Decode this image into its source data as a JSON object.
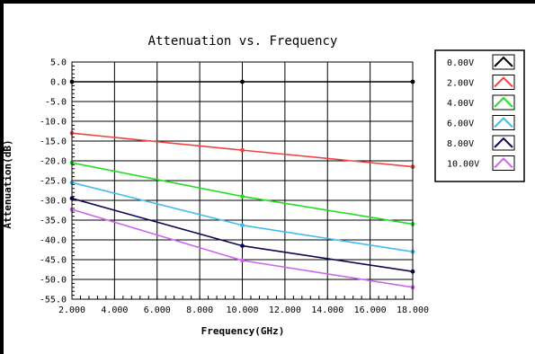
{
  "chart_data": {
    "type": "line",
    "title": "Attenuation vs. Frequency",
    "xlabel": "Frequency(GHz)",
    "ylabel": "Attenuation(dB)",
    "xlim": [
      2,
      18
    ],
    "ylim": [
      -55,
      5
    ],
    "grid": true,
    "legend_position": "top-right",
    "x_ticks": [
      "2.000",
      "4.000",
      "6.000",
      "8.000",
      "10.000",
      "12.000",
      "14.000",
      "16.000",
      "18.000"
    ],
    "y_ticks": [
      "5.0",
      "0.0",
      "-5.0",
      "-10.0",
      "-15.0",
      "-20.0",
      "-25.0",
      "-30.0",
      "-35.0",
      "-40.0",
      "-45.0",
      "-50.0",
      "-55.0"
    ],
    "series": [
      {
        "name": "0.00V",
        "color": "#000000",
        "points": [
          [
            2,
            0
          ],
          [
            10,
            0
          ],
          [
            18,
            0
          ]
        ]
      },
      {
        "name": "2.00V",
        "color": "#ee4444",
        "points": [
          [
            2,
            -13.0
          ],
          [
            10,
            -17.3
          ],
          [
            18,
            -21.5
          ]
        ]
      },
      {
        "name": "4.00V",
        "color": "#22dd22",
        "points": [
          [
            2,
            -20.5
          ],
          [
            10,
            -29.0
          ],
          [
            18,
            -36.0
          ]
        ]
      },
      {
        "name": "6.00V",
        "color": "#44bbee",
        "points": [
          [
            2,
            -25.5
          ],
          [
            10,
            -36.3
          ],
          [
            18,
            -43.0
          ]
        ]
      },
      {
        "name": "8.00V",
        "color": "#0a0a55",
        "points": [
          [
            2,
            -29.5
          ],
          [
            10,
            -41.5
          ],
          [
            18,
            -48.0
          ]
        ]
      },
      {
        "name": "10.00V",
        "color": "#cc66ee",
        "points": [
          [
            2,
            -32.3
          ],
          [
            10,
            -45.2
          ],
          [
            18,
            -52.0
          ]
        ]
      }
    ]
  }
}
